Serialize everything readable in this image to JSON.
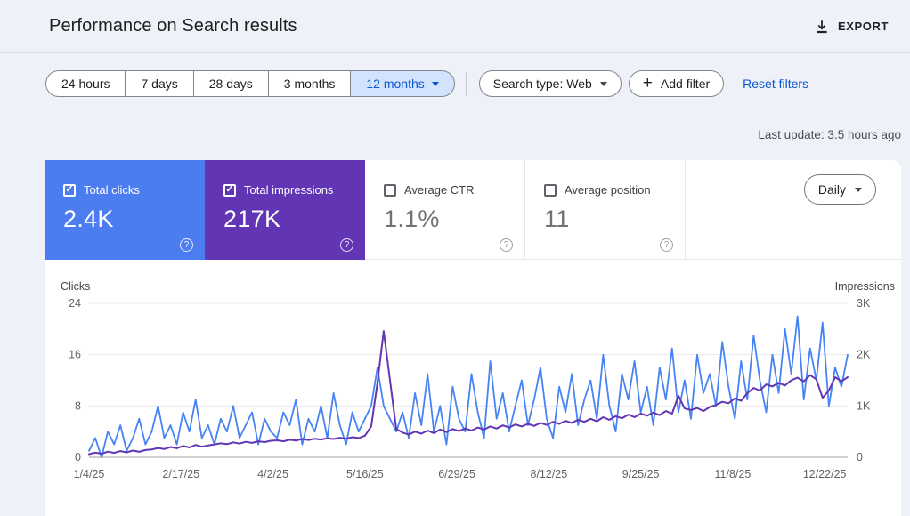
{
  "header": {
    "title": "Performance on Search results",
    "export_label": "EXPORT"
  },
  "filters": {
    "ranges": [
      "24 hours",
      "7 days",
      "28 days",
      "3 months",
      "12 months"
    ],
    "selected_range": "12 months",
    "search_type_label": "Search type: Web",
    "plus_sign": "+",
    "add_filter_label": "Add filter",
    "reset_label": "Reset filters"
  },
  "last_update": "Last update: 3.5 hours ago",
  "controls": {
    "daily_label": "Daily"
  },
  "help_glyph": "?",
  "check_glyph": "✓",
  "metrics": {
    "cards": [
      {
        "label": "Total clicks",
        "value": "2.4K",
        "checked": true,
        "color": "#4c7df0"
      },
      {
        "label": "Total impressions",
        "value": "217K",
        "checked": true,
        "color": "#6135b4"
      },
      {
        "label": "Average CTR",
        "value": "1.1%",
        "checked": false
      },
      {
        "label": "Average position",
        "value": "11",
        "checked": false
      }
    ]
  },
  "chart_data": {
    "type": "line",
    "left_axis": {
      "label": "Clicks",
      "ticks": [
        "24",
        "16",
        "8",
        "0"
      ],
      "max": 24
    },
    "right_axis": {
      "label": "Impressions",
      "ticks": [
        "3K",
        "2K",
        "1K",
        "0"
      ],
      "max": 3000
    },
    "x_tick_labels": [
      "1/4/25",
      "2/17/25",
      "4/2/25",
      "5/16/25",
      "6/29/25",
      "8/12/25",
      "9/25/25",
      "11/8/25",
      "12/22/25"
    ],
    "x_tick_days": [
      0,
      44,
      88,
      132,
      176,
      220,
      264,
      308,
      352
    ],
    "total_days": 363,
    "grid_color": "#e8eaed",
    "zero_line_color": "#9aa0a6",
    "tick_text_color": "#5f6368",
    "axis_title_color": "#444746",
    "series": [
      {
        "name": "Clicks",
        "axis": "left",
        "color": "#4683f4",
        "width": 1.8,
        "values": [
          1,
          3,
          0,
          4,
          2,
          5,
          1,
          3,
          6,
          2,
          4,
          8,
          3,
          5,
          2,
          7,
          4,
          9,
          3,
          5,
          2,
          6,
          4,
          8,
          3,
          5,
          7,
          2,
          6,
          4,
          3,
          7,
          5,
          9,
          2,
          6,
          4,
          8,
          3,
          10,
          5,
          2,
          7,
          4,
          6,
          8,
          14,
          8,
          6,
          4,
          7,
          3,
          10,
          5,
          13,
          4,
          8,
          2,
          11,
          6,
          4,
          13,
          7,
          3,
          15,
          6,
          10,
          4,
          8,
          12,
          5,
          9,
          14,
          6,
          3,
          11,
          7,
          13,
          5,
          9,
          12,
          6,
          16,
          8,
          4,
          13,
          9,
          15,
          7,
          11,
          5,
          14,
          9,
          17,
          7,
          12,
          6,
          16,
          10,
          13,
          8,
          18,
          11,
          6,
          15,
          9,
          19,
          12,
          7,
          16,
          10,
          20,
          13,
          22,
          9,
          17,
          12,
          21,
          8,
          14,
          11,
          16
        ]
      },
      {
        "name": "Impressions",
        "axis": "right",
        "color": "#6135b4",
        "width": 2,
        "values": [
          60,
          90,
          70,
          110,
          85,
          120,
          95,
          130,
          105,
          140,
          150,
          180,
          160,
          200,
          175,
          220,
          190,
          240,
          205,
          230,
          250,
          270,
          255,
          290,
          265,
          300,
          280,
          310,
          295,
          320,
          330,
          310,
          340,
          325,
          355,
          335,
          360,
          345,
          370,
          355,
          380,
          360,
          390,
          375,
          420,
          600,
          1450,
          2460,
          1500,
          550,
          480,
          440,
          500,
          460,
          520,
          470,
          540,
          490,
          550,
          510,
          560,
          520,
          580,
          540,
          600,
          560,
          620,
          580,
          640,
          600,
          650,
          610,
          670,
          630,
          690,
          650,
          710,
          670,
          730,
          690,
          750,
          700,
          780,
          730,
          800,
          760,
          830,
          780,
          850,
          810,
          870,
          820,
          900,
          850,
          1200,
          950,
          920,
          960,
          900,
          980,
          1020,
          1080,
          1050,
          1150,
          1100,
          1250,
          1350,
          1300,
          1420,
          1380,
          1450,
          1400,
          1500,
          1550,
          1480,
          1600,
          1520,
          1160,
          1300,
          1560,
          1480,
          1560
        ]
      }
    ]
  }
}
